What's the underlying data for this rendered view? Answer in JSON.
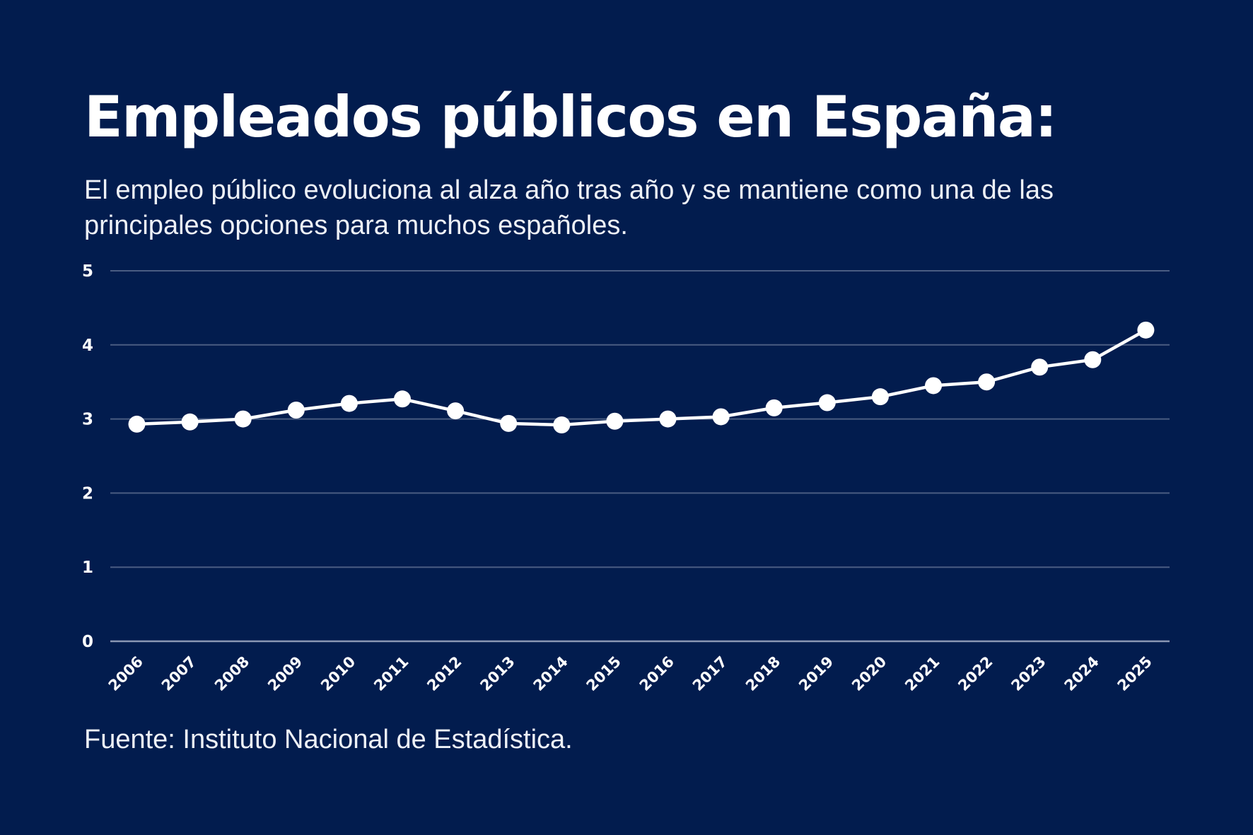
{
  "header": {
    "title": "Empleados públicos en España:",
    "subtitle": "El empleo público evoluciona al alza año tras año y se mantiene como una de las principales opciones para muchos españoles."
  },
  "footer": {
    "source": "Fuente: Instituto Nacional de Estadística."
  },
  "colors": {
    "background": "#021c4e",
    "line": "#ffffff",
    "gridline": "#4a5c82",
    "text": "#ffffff"
  },
  "chart_data": {
    "type": "line",
    "title": "Empleados públicos en España:",
    "subtitle": "El empleo público evoluciona al alza año tras año y se mantiene como una de las principales opciones para muchos españoles.",
    "xlabel": "",
    "ylabel": "",
    "x": [
      "2006",
      "2007",
      "2008",
      "2009",
      "2010",
      "2011",
      "2012",
      "2013",
      "2014",
      "2015",
      "2016",
      "2017",
      "2018",
      "2019",
      "2020",
      "2021",
      "2022",
      "2023",
      "2024",
      "2025"
    ],
    "series": [
      {
        "name": "Empleados públicos",
        "values": [
          2.93,
          2.96,
          3.0,
          3.12,
          3.21,
          3.27,
          3.11,
          2.94,
          2.92,
          2.97,
          3.0,
          3.03,
          3.15,
          3.22,
          3.3,
          3.45,
          3.5,
          3.7,
          3.8,
          4.2
        ]
      }
    ],
    "ylim": [
      0,
      5
    ],
    "yticks": [
      "0",
      "1",
      "2",
      "3",
      "4",
      "5"
    ],
    "grid": true,
    "x_tick_rotation": "diagonal",
    "legend": "none",
    "source": "Fuente: Instituto Nacional de Estadística."
  }
}
